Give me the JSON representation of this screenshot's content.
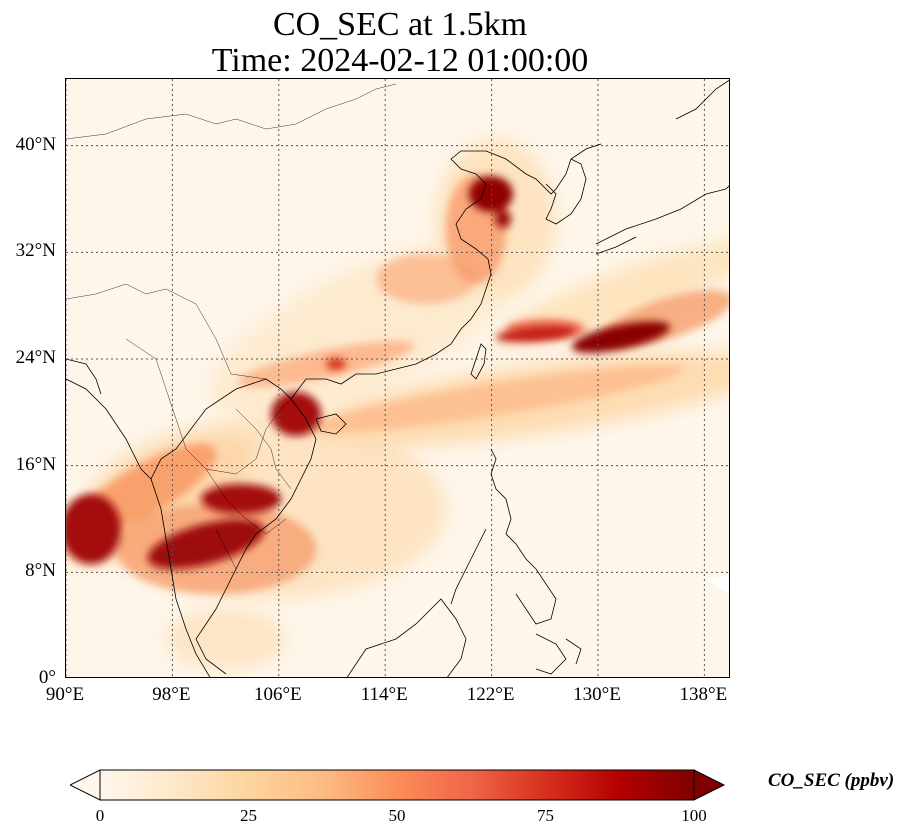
{
  "title": {
    "line1": "CO_SEC at 1.5km",
    "line2": "Time: 2024-02-12 01:00:00"
  },
  "map": {
    "lon_range": [
      90,
      140
    ],
    "lat_range": [
      0,
      45
    ],
    "lon_ticks": [
      "90°E",
      "98°E",
      "106°E",
      "114°E",
      "122°E",
      "130°E",
      "138°E"
    ],
    "lat_ticks": [
      "0°",
      "8°N",
      "16°N",
      "24°N",
      "32°N",
      "40°N"
    ],
    "grid": "dotted",
    "colormap": "OrRd",
    "colors": [
      "#fff7ec",
      "#fee8c8",
      "#fdd49e",
      "#fdbb84",
      "#fc8d59",
      "#ef6548",
      "#d7301f",
      "#b30000",
      "#7f0000"
    ]
  },
  "colorbar": {
    "label": "CO_SEC (ppbv)",
    "ticks": [
      "0",
      "25",
      "50",
      "75",
      "100"
    ],
    "extend": "both"
  }
}
